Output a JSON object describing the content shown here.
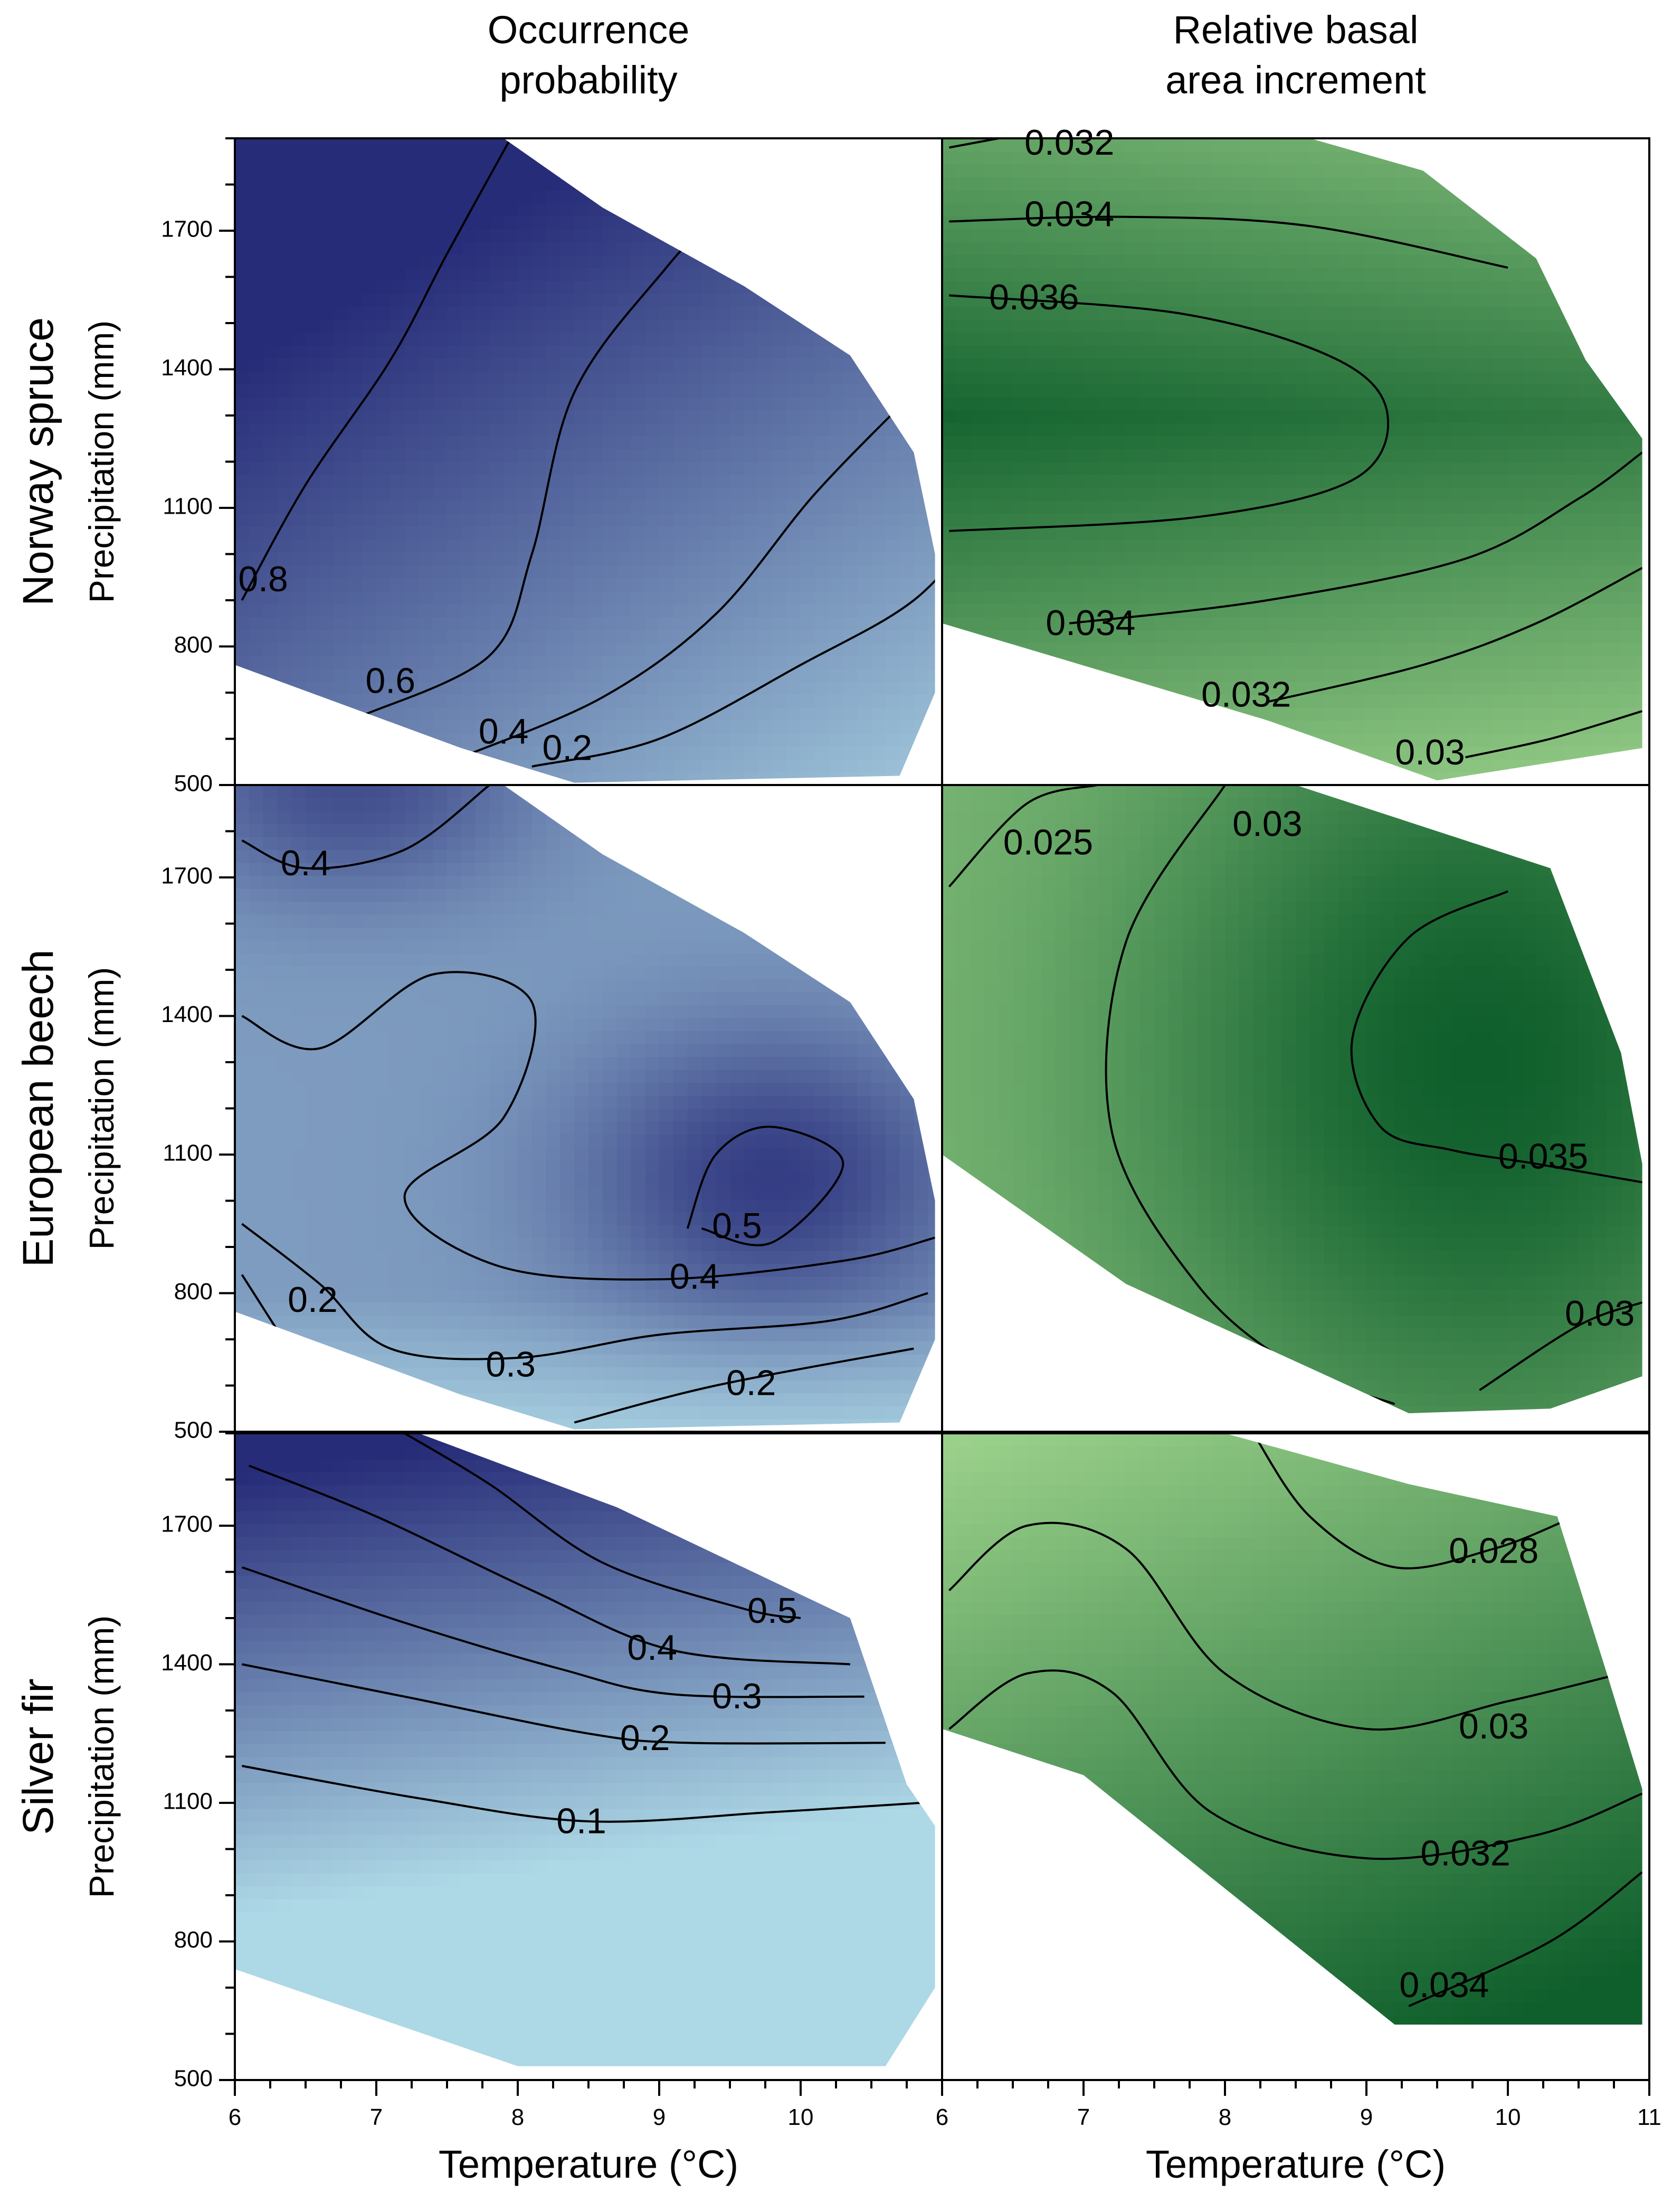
{
  "chart_data": {
    "type": "heatmap",
    "column_titles": [
      [
        "Occurrence",
        "probability"
      ],
      [
        "Relative basal",
        "area increment"
      ]
    ],
    "row_titles": [
      "Norway spruce",
      "European beech",
      "Silver fir"
    ],
    "ylabel": "Precipitation (mm)",
    "xlabel": "Temperature (°C)",
    "xlim": [
      6,
      11
    ],
    "ylim": [
      500,
      1900
    ],
    "y_ticks": [
      "500",
      "800",
      "1100",
      "1400",
      "1700"
    ],
    "x_ticks_left": [
      "6",
      "7",
      "8",
      "9",
      "10"
    ],
    "x_ticks_right": [
      "6",
      "7",
      "8",
      "9",
      "10",
      "11"
    ],
    "colors": {
      "prob_low": "#add8e6",
      "prob_high": "#272c78",
      "rbai_low": "#9ad08a",
      "rbai_high": "#0f5f2c",
      "contour": "#000000"
    },
    "panels": [
      {
        "species": "Norway spruce",
        "metric": "Occurrence probability",
        "contours": [
          {
            "level": "0.8",
            "points": [
              [
                6.05,
                900
              ],
              [
                6.5,
                1150
              ],
              [
                7.1,
                1420
              ],
              [
                7.5,
                1650
              ],
              [
                7.95,
                1900
              ]
            ],
            "label_at": [
              6.2,
              940
            ]
          },
          {
            "level": "0.6",
            "points": [
              [
                6.9,
                650
              ],
              [
                7.8,
                780
              ],
              [
                8.1,
                1000
              ],
              [
                8.4,
                1350
              ],
              [
                9.05,
                1620
              ],
              [
                9.6,
                1800
              ]
            ],
            "label_at": [
              7.1,
              720
            ]
          },
          {
            "level": "0.4",
            "points": [
              [
                7.6,
                560
              ],
              [
                8.6,
                690
              ],
              [
                9.4,
                870
              ],
              [
                10.1,
                1130
              ],
              [
                10.8,
                1350
              ]
            ],
            "label_at": [
              7.9,
              610
            ]
          },
          {
            "level": "0.2",
            "points": [
              [
                8.1,
                540
              ],
              [
                9.0,
                600
              ],
              [
                10.0,
                760
              ],
              [
                10.8,
                900
              ],
              [
                11.3,
                1070
              ]
            ],
            "label_at": [
              8.35,
              575
            ]
          }
        ]
      },
      {
        "species": "Norway spruce",
        "metric": "Relative basal area increment",
        "contours": [
          {
            "level": "0.032",
            "points": [
              [
                6.05,
                1880
              ],
              [
                6.4,
                1900
              ]
            ],
            "label_at": [
              6.9,
              1885
            ]
          },
          {
            "level": "0.034",
            "points": [
              [
                6.05,
                1720
              ],
              [
                7.3,
                1730
              ],
              [
                8.6,
                1710
              ],
              [
                10.0,
                1620
              ]
            ],
            "label_at": [
              6.9,
              1730
            ]
          },
          {
            "level": "0.036",
            "points": [
              [
                6.05,
                1560
              ],
              [
                7.7,
                1520
              ],
              [
                8.8,
                1420
              ],
              [
                9.15,
                1300
              ],
              [
                8.9,
                1160
              ],
              [
                7.8,
                1080
              ],
              [
                6.05,
                1050
              ]
            ],
            "label_at": [
              6.65,
              1550
            ]
          },
          {
            "level": "0.034",
            "points": [
              [
                6.9,
                850
              ],
              [
                8.3,
                900
              ],
              [
                9.7,
                990
              ],
              [
                10.5,
                1120
              ],
              [
                10.95,
                1220
              ]
            ],
            "label_at": [
              7.05,
              845
            ]
          },
          {
            "level": "0.032",
            "points": [
              [
                8.3,
                680
              ],
              [
                9.4,
                760
              ],
              [
                10.2,
                850
              ],
              [
                10.95,
                970
              ]
            ],
            "label_at": [
              8.15,
              690
            ]
          },
          {
            "level": "0.03",
            "points": [
              [
                9.7,
                560
              ],
              [
                10.3,
                600
              ],
              [
                10.95,
                660
              ]
            ],
            "label_at": [
              9.45,
              565
            ]
          }
        ]
      },
      {
        "species": "European beech",
        "metric": "Occurrence probability",
        "contours": [
          {
            "level": "0.4",
            "points": [
              [
                6.05,
                1780
              ],
              [
                6.5,
                1720
              ],
              [
                7.2,
                1760
              ],
              [
                7.8,
                1900
              ]
            ],
            "label_at": [
              6.5,
              1725
            ]
          },
          {
            "level": "0.4",
            "points": [
              [
                6.05,
                1400
              ],
              [
                6.6,
                1330
              ],
              [
                7.4,
                1490
              ],
              [
                8.1,
                1430
              ],
              [
                7.9,
                1180
              ],
              [
                7.2,
                1010
              ],
              [
                7.85,
                860
              ],
              [
                9.0,
                830
              ],
              [
                10.3,
                870
              ],
              [
                10.95,
                920
              ]
            ],
            "label_at": [
              9.25,
              830
            ]
          },
          {
            "level": "0.5",
            "points": [
              [
                9.2,
                940
              ],
              [
                9.4,
                1100
              ],
              [
                9.8,
                1160
              ],
              [
                10.3,
                1080
              ],
              [
                9.8,
                910
              ],
              [
                9.3,
                940
              ]
            ],
            "label_at": [
              9.55,
              940
            ]
          },
          {
            "level": "0.3",
            "points": [
              [
                6.05,
                950
              ],
              [
                6.6,
                820
              ],
              [
                7.1,
                680
              ],
              [
                8.0,
                660
              ],
              [
                9.0,
                710
              ],
              [
                10.2,
                740
              ],
              [
                10.9,
                800
              ]
            ],
            "label_at": [
              7.95,
              640
            ]
          },
          {
            "level": "0.2",
            "points": [
              [
                6.05,
                840
              ],
              [
                6.3,
                720
              ]
            ],
            "label_at": [
              6.55,
              780
            ]
          },
          {
            "level": "0.2",
            "points": [
              [
                8.4,
                520
              ],
              [
                9.4,
                600
              ],
              [
                10.8,
                680
              ]
            ],
            "label_at": [
              9.65,
              600
            ]
          }
        ]
      },
      {
        "species": "European beech",
        "metric": "Relative basal area increment",
        "contours": [
          {
            "level": "0.025",
            "points": [
              [
                6.05,
                1680
              ],
              [
                6.6,
                1860
              ],
              [
                7.1,
                1900
              ]
            ],
            "label_at": [
              6.75,
              1770
            ]
          },
          {
            "level": "0.03",
            "points": [
              [
                8.0,
                1900
              ],
              [
                7.3,
                1560
              ],
              [
                7.2,
                1150
              ],
              [
                7.8,
                820
              ],
              [
                8.5,
                640
              ],
              [
                9.2,
                560
              ]
            ],
            "label_at": [
              8.3,
              1810
            ]
          },
          {
            "level": "0.035",
            "points": [
              [
                10.0,
                1670
              ],
              [
                9.3,
                1570
              ],
              [
                8.9,
                1350
              ],
              [
                9.1,
                1160
              ],
              [
                9.6,
                1110
              ],
              [
                10.2,
                1080
              ],
              [
                10.95,
                1040
              ]
            ],
            "label_at": [
              10.25,
              1090
            ]
          },
          {
            "level": "0.03",
            "points": [
              [
                9.8,
                590
              ],
              [
                10.5,
                730
              ],
              [
                10.95,
                780
              ]
            ],
            "label_at": [
              10.65,
              750
            ]
          }
        ]
      },
      {
        "species": "Silver fir",
        "metric": "Occurrence probability",
        "contours": [
          {
            "level": "0.5",
            "points": [
              [
                7.2,
                1900
              ],
              [
                7.8,
                1790
              ],
              [
                8.6,
                1620
              ],
              [
                9.6,
                1520
              ],
              [
                10.0,
                1500
              ]
            ],
            "label_at": [
              9.8,
              1510
            ]
          },
          {
            "level": "0.4",
            "points": [
              [
                6.1,
                1830
              ],
              [
                7.0,
                1720
              ],
              [
                8.1,
                1560
              ],
              [
                9.1,
                1430
              ],
              [
                10.35,
                1400
              ]
            ],
            "label_at": [
              8.95,
              1430
            ]
          },
          {
            "level": "0.3",
            "points": [
              [
                6.05,
                1610
              ],
              [
                7.2,
                1490
              ],
              [
                8.3,
                1390
              ],
              [
                9.1,
                1335
              ],
              [
                10.45,
                1330
              ]
            ],
            "label_at": [
              9.55,
              1325
            ]
          },
          {
            "level": "0.2",
            "points": [
              [
                6.05,
                1400
              ],
              [
                7.2,
                1330
              ],
              [
                8.5,
                1250
              ],
              [
                9.2,
                1230
              ],
              [
                10.6,
                1230
              ]
            ],
            "label_at": [
              8.9,
              1235
            ]
          },
          {
            "level": "0.1",
            "points": [
              [
                6.05,
                1180
              ],
              [
                7.3,
                1110
              ],
              [
                8.5,
                1060
              ],
              [
                9.8,
                1080
              ],
              [
                10.85,
                1100
              ]
            ],
            "label_at": [
              8.45,
              1055
            ]
          }
        ]
      },
      {
        "species": "Silver fir",
        "metric": "Relative basal area increment",
        "contours": [
          {
            "level": "0.028",
            "points": [
              [
                8.2,
                1900
              ],
              [
                8.6,
                1720
              ],
              [
                9.2,
                1610
              ],
              [
                9.9,
                1650
              ],
              [
                10.4,
                1710
              ]
            ],
            "label_at": [
              9.9,
              1640
            ]
          },
          {
            "level": "0.03",
            "points": [
              [
                6.05,
                1560
              ],
              [
                6.6,
                1700
              ],
              [
                7.3,
                1650
              ],
              [
                8.0,
                1380
              ],
              [
                9.0,
                1260
              ],
              [
                10.0,
                1320
              ],
              [
                10.8,
                1380
              ]
            ],
            "label_at": [
              9.9,
              1260
            ]
          },
          {
            "level": "0.032",
            "points": [
              [
                6.05,
                1260
              ],
              [
                6.6,
                1380
              ],
              [
                7.2,
                1340
              ],
              [
                7.9,
                1080
              ],
              [
                9.0,
                980
              ],
              [
                10.2,
                1030
              ],
              [
                10.95,
                1120
              ]
            ],
            "label_at": [
              9.7,
              985
            ]
          },
          {
            "level": "0.034",
            "points": [
              [
                9.3,
                660
              ],
              [
                10.3,
                800
              ],
              [
                10.95,
                950
              ]
            ],
            "label_at": [
              9.55,
              700
            ]
          }
        ]
      }
    ]
  }
}
